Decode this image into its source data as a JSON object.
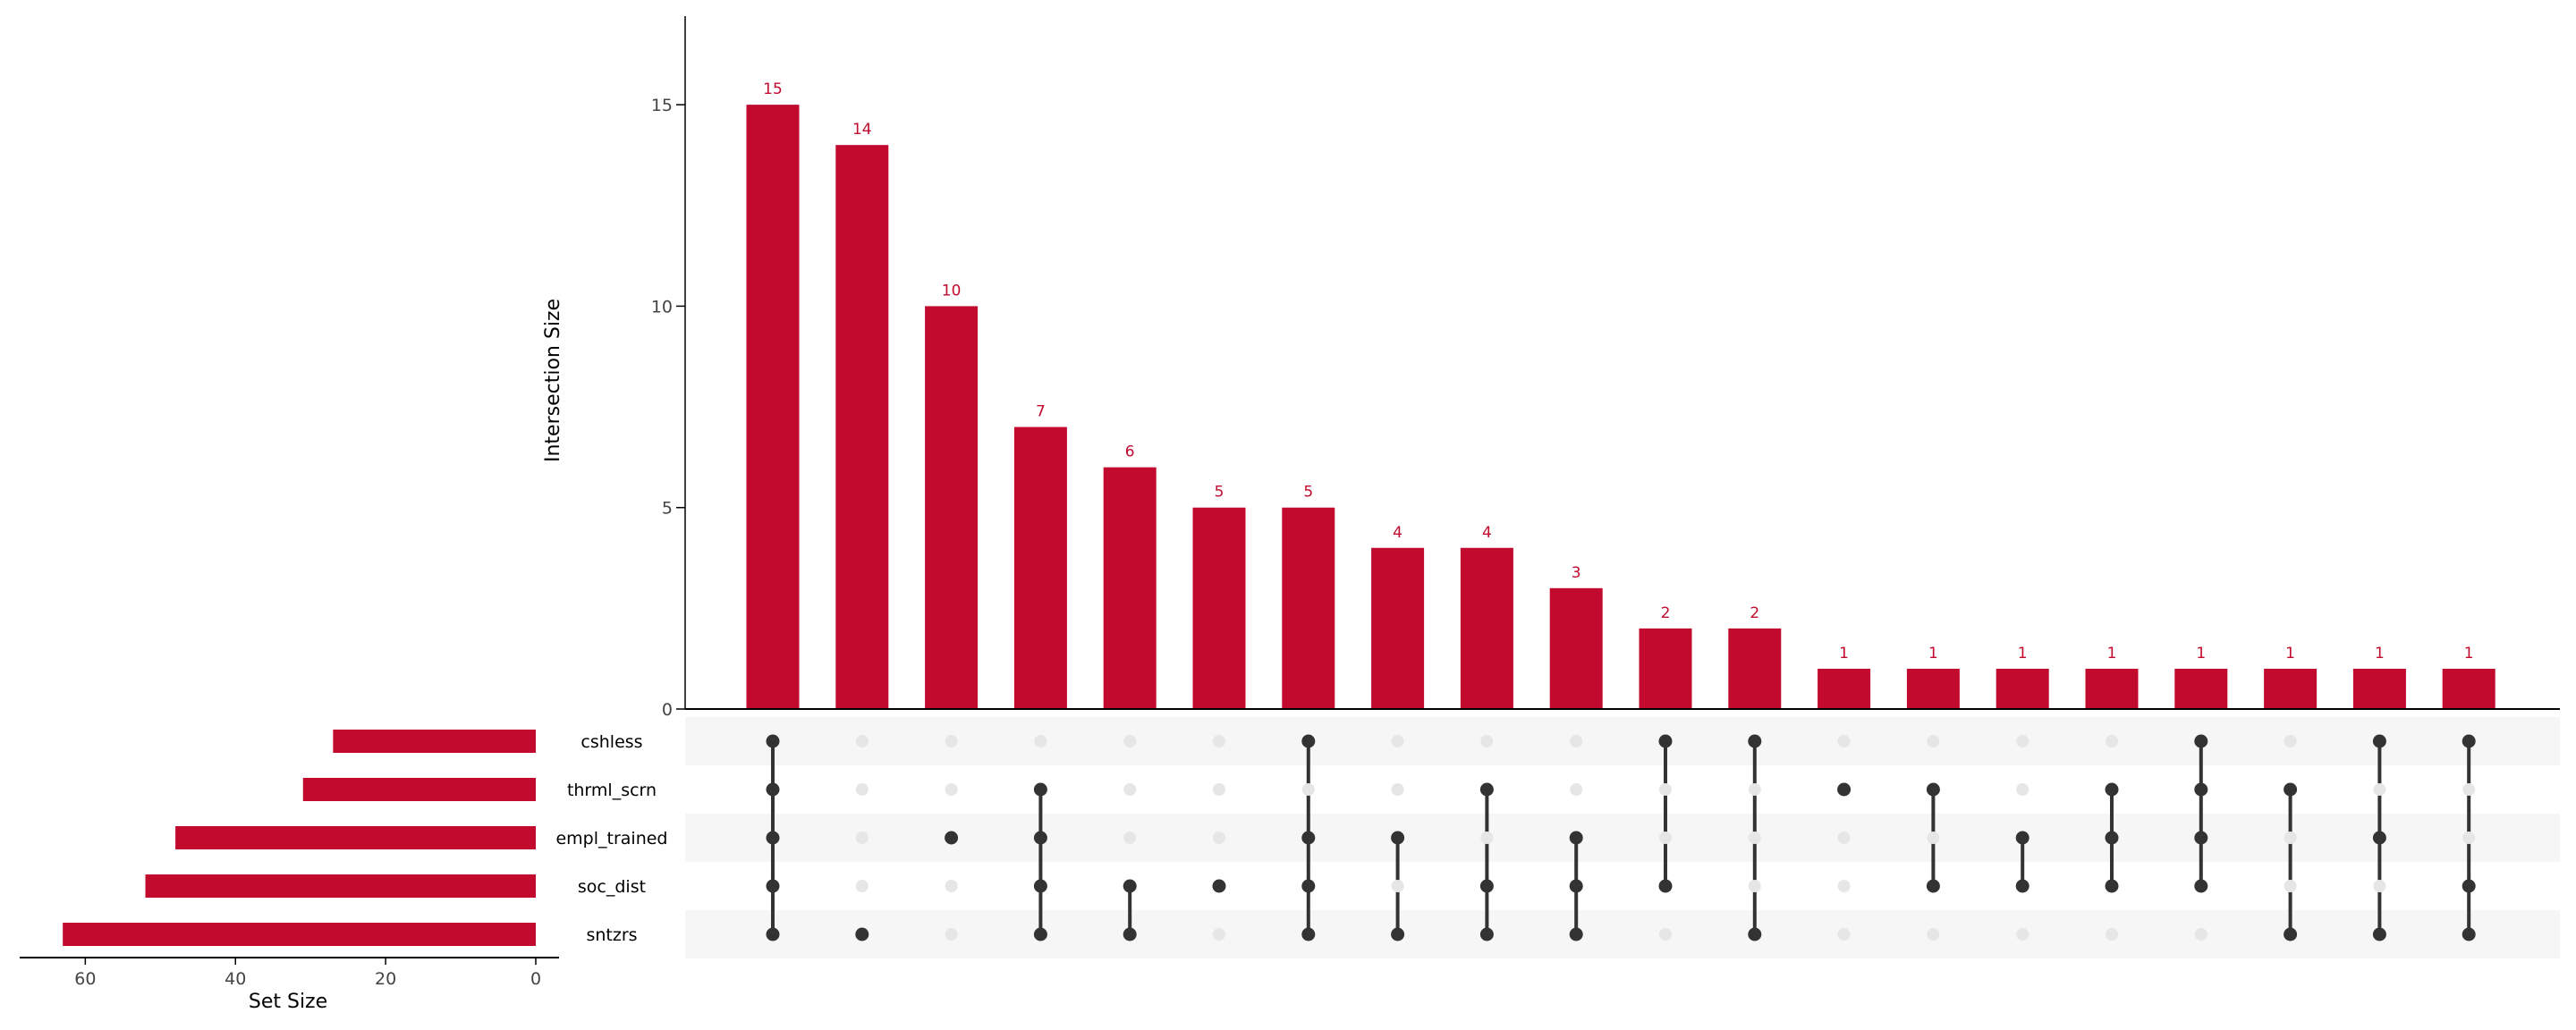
{
  "colors": {
    "bar": "#C20A2E",
    "bar_label": "#C20A2E",
    "dot_active": "#333333",
    "dot_inactive": "#E6E6E6",
    "stripe": "#F6F6F6",
    "axis": "#000000",
    "tick_text": "#444444"
  },
  "chart_data": {
    "type": "upset",
    "ylabel": "Intersection Size",
    "set_size_label": "Set Size",
    "y_ticks": [
      0,
      5,
      10,
      15
    ],
    "ylim": [
      0,
      17.2
    ],
    "set_size_ticks": [
      60,
      40,
      20,
      0
    ],
    "set_size_lim": [
      0,
      66
    ],
    "sets": [
      "cshless",
      "thrml_scrn",
      "empl_trained",
      "soc_dist",
      "sntzrs"
    ],
    "set_sizes": [
      27,
      31,
      48,
      52,
      63
    ],
    "intersections": [
      {
        "value": 15,
        "members": [
          "cshless",
          "thrml_scrn",
          "empl_trained",
          "soc_dist",
          "sntzrs"
        ]
      },
      {
        "value": 14,
        "members": [
          "sntzrs"
        ]
      },
      {
        "value": 10,
        "members": [
          "empl_trained"
        ]
      },
      {
        "value": 7,
        "members": [
          "thrml_scrn",
          "empl_trained",
          "soc_dist",
          "sntzrs"
        ]
      },
      {
        "value": 6,
        "members": [
          "soc_dist",
          "sntzrs"
        ]
      },
      {
        "value": 5,
        "members": [
          "soc_dist"
        ]
      },
      {
        "value": 5,
        "members": [
          "cshless",
          "empl_trained",
          "soc_dist",
          "sntzrs"
        ]
      },
      {
        "value": 4,
        "members": [
          "empl_trained",
          "sntzrs"
        ]
      },
      {
        "value": 4,
        "members": [
          "thrml_scrn",
          "soc_dist",
          "sntzrs"
        ]
      },
      {
        "value": 3,
        "members": [
          "empl_trained",
          "soc_dist",
          "sntzrs"
        ]
      },
      {
        "value": 2,
        "members": [
          "cshless",
          "soc_dist"
        ]
      },
      {
        "value": 2,
        "members": [
          "cshless",
          "sntzrs"
        ]
      },
      {
        "value": 1,
        "members": [
          "thrml_scrn"
        ]
      },
      {
        "value": 1,
        "members": [
          "thrml_scrn",
          "soc_dist"
        ]
      },
      {
        "value": 1,
        "members": [
          "empl_trained",
          "soc_dist"
        ]
      },
      {
        "value": 1,
        "members": [
          "thrml_scrn",
          "empl_trained",
          "soc_dist"
        ]
      },
      {
        "value": 1,
        "members": [
          "cshless",
          "thrml_scrn",
          "empl_trained",
          "soc_dist"
        ]
      },
      {
        "value": 1,
        "members": [
          "thrml_scrn",
          "sntzrs"
        ]
      },
      {
        "value": 1,
        "members": [
          "cshless",
          "empl_trained",
          "sntzrs"
        ]
      },
      {
        "value": 1,
        "members": [
          "cshless",
          "soc_dist",
          "sntzrs"
        ]
      }
    ]
  }
}
